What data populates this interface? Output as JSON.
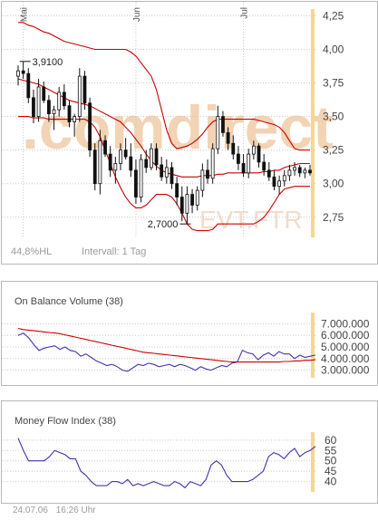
{
  "colors": {
    "band": "#cc0000",
    "line": "#4433aa",
    "candle": "#111111",
    "grid": "#c8c8c8",
    "marker": "#f6d88a",
    "watermark": "#f2d3b4",
    "muted": "#9a9a9a",
    "text": "#444444"
  },
  "price_panel": {
    "watermark": ".comdirect",
    "watermark2": "EVT.FTR",
    "stat_left": "44,8%HL",
    "stat_interval": "Intervall: 1 Tag",
    "hi_label": "3,9100",
    "lo_label": "2,7000",
    "month_labels": [
      "Mai",
      "Jun",
      "Jul"
    ],
    "y_ticks": [
      "4,25",
      "4,00",
      "3,75",
      "3,50",
      "3,25",
      "3,00",
      "2,75"
    ]
  },
  "obv_panel": {
    "title": "On Balance Volume (38)",
    "y_ticks": [
      "7.000.000",
      "6.000.000",
      "5.000.000",
      "4.000.000",
      "3.000.000"
    ]
  },
  "mfi_panel": {
    "title": "Money Flow Index (38)",
    "y_ticks": [
      "60",
      "55",
      "50",
      "45",
      "40"
    ]
  },
  "footer": {
    "date": "24.07.06",
    "time": "16:26 Uhr"
  },
  "chart_data": [
    {
      "type": "candlestick",
      "title": "",
      "ylim": [
        2.6,
        4.3
      ],
      "y_ticks": [
        2.75,
        3.0,
        3.25,
        3.5,
        3.75,
        4.0,
        4.25
      ],
      "grid": true,
      "n_days": 58,
      "month_starts": {
        "Mai": 1,
        "Jun": 23,
        "Jul": 44
      },
      "annotations": [
        {
          "label": "3,9100",
          "index": 1,
          "value": 3.91
        },
        {
          "label": "2,7000",
          "index": 33,
          "value": 2.7
        }
      ],
      "ohlc": [
        [
          3.8,
          3.88,
          3.73,
          3.84
        ],
        [
          3.84,
          3.91,
          3.78,
          3.82
        ],
        [
          3.82,
          3.86,
          3.6,
          3.64
        ],
        [
          3.64,
          3.7,
          3.45,
          3.5
        ],
        [
          3.5,
          3.78,
          3.46,
          3.72
        ],
        [
          3.72,
          3.76,
          3.6,
          3.62
        ],
        [
          3.62,
          3.66,
          3.46,
          3.52
        ],
        [
          3.52,
          3.58,
          3.4,
          3.55
        ],
        [
          3.55,
          3.72,
          3.5,
          3.68
        ],
        [
          3.68,
          3.74,
          3.55,
          3.58
        ],
        [
          3.58,
          3.62,
          3.42,
          3.46
        ],
        [
          3.46,
          3.52,
          3.35,
          3.5
        ],
        [
          3.5,
          3.86,
          3.46,
          3.8
        ],
        [
          3.8,
          3.84,
          3.55,
          3.6
        ],
        [
          3.6,
          3.64,
          3.2,
          3.25
        ],
        [
          3.25,
          3.3,
          2.95,
          3.0
        ],
        [
          3.0,
          3.4,
          2.92,
          3.32
        ],
        [
          3.32,
          3.36,
          3.2,
          3.22
        ],
        [
          3.22,
          3.28,
          3.05,
          3.1
        ],
        [
          3.1,
          3.2,
          3.0,
          3.15
        ],
        [
          3.15,
          3.3,
          3.1,
          3.25
        ],
        [
          3.25,
          3.34,
          3.18,
          3.2
        ],
        [
          3.2,
          3.3,
          3.05,
          3.1
        ],
        [
          3.1,
          3.18,
          2.85,
          2.9
        ],
        [
          2.9,
          3.22,
          2.86,
          3.18
        ],
        [
          3.18,
          3.25,
          3.08,
          3.12
        ],
        [
          3.12,
          3.3,
          3.1,
          3.26
        ],
        [
          3.26,
          3.3,
          3.1,
          3.14
        ],
        [
          3.14,
          3.2,
          3.02,
          3.05
        ],
        [
          3.05,
          3.18,
          3.0,
          3.12
        ],
        [
          3.12,
          3.16,
          2.96,
          3.0
        ],
        [
          3.0,
          3.05,
          2.84,
          2.9
        ],
        [
          2.9,
          2.98,
          2.72,
          2.78
        ],
        [
          2.78,
          2.98,
          2.7,
          2.92
        ],
        [
          2.92,
          2.96,
          2.78,
          2.84
        ],
        [
          2.84,
          2.98,
          2.8,
          2.95
        ],
        [
          2.95,
          3.15,
          2.9,
          3.1
        ],
        [
          3.1,
          3.18,
          3.0,
          3.04
        ],
        [
          3.04,
          3.3,
          3.0,
          3.26
        ],
        [
          3.26,
          3.58,
          3.22,
          3.5
        ],
        [
          3.5,
          3.54,
          3.35,
          3.38
        ],
        [
          3.38,
          3.42,
          3.25,
          3.3
        ],
        [
          3.3,
          3.36,
          3.18,
          3.22
        ],
        [
          3.22,
          3.28,
          3.1,
          3.15
        ],
        [
          3.15,
          3.22,
          3.05,
          3.08
        ],
        [
          3.08,
          3.26,
          3.04,
          3.22
        ],
        [
          3.22,
          3.32,
          3.18,
          3.28
        ],
        [
          3.28,
          3.3,
          3.12,
          3.16
        ],
        [
          3.16,
          3.22,
          3.06,
          3.1
        ],
        [
          3.1,
          3.16,
          3.02,
          3.05
        ],
        [
          3.05,
          3.1,
          2.95,
          2.98
        ],
        [
          2.98,
          3.06,
          2.92,
          3.02
        ],
        [
          3.02,
          3.1,
          2.98,
          3.06
        ],
        [
          3.06,
          3.14,
          3.02,
          3.1
        ],
        [
          3.1,
          3.16,
          3.06,
          3.12
        ],
        [
          3.12,
          3.14,
          3.05,
          3.08
        ],
        [
          3.08,
          3.12,
          3.04,
          3.1
        ],
        [
          3.1,
          3.14,
          3.06,
          3.08
        ]
      ],
      "bands": {
        "upper": [
          4.2,
          4.2,
          4.18,
          4.17,
          4.15,
          4.13,
          4.12,
          4.1,
          4.08,
          4.06,
          4.05,
          4.04,
          4.03,
          4.02,
          4.01,
          4.0,
          4.0,
          4.0,
          4.0,
          4.0,
          4.0,
          4.0,
          3.98,
          3.95,
          3.9,
          3.85,
          3.8,
          3.7,
          3.55,
          3.4,
          3.3,
          3.26,
          3.27,
          3.28,
          3.3,
          3.33,
          3.37,
          3.42,
          3.46,
          3.48,
          3.48,
          3.48,
          3.48,
          3.48,
          3.48,
          3.48,
          3.48,
          3.47,
          3.46,
          3.45,
          3.44,
          3.42,
          3.38,
          3.32,
          3.26,
          3.25,
          3.25,
          3.25
        ],
        "middle": [
          3.78,
          3.77,
          3.76,
          3.75,
          3.74,
          3.72,
          3.7,
          3.68,
          3.66,
          3.64,
          3.62,
          3.61,
          3.6,
          3.59,
          3.58,
          3.56,
          3.54,
          3.52,
          3.5,
          3.48,
          3.46,
          3.42,
          3.38,
          3.33,
          3.28,
          3.22,
          3.17,
          3.13,
          3.1,
          3.08,
          3.07,
          3.06,
          3.05,
          3.05,
          3.05,
          3.05,
          3.06,
          3.06,
          3.06,
          3.07,
          3.07,
          3.08,
          3.08,
          3.08,
          3.08,
          3.08,
          3.08,
          3.08,
          3.09,
          3.09,
          3.1,
          3.1,
          3.12,
          3.13,
          3.14,
          3.15,
          3.15,
          3.15
        ],
        "lower": [
          3.5,
          3.5,
          3.5,
          3.49,
          3.49,
          3.49,
          3.48,
          3.48,
          3.48,
          3.48,
          3.48,
          3.48,
          3.48,
          3.48,
          3.46,
          3.42,
          3.35,
          3.25,
          3.15,
          3.05,
          2.97,
          2.9,
          2.85,
          2.82,
          2.82,
          2.84,
          2.88,
          2.92,
          2.92,
          2.92,
          2.9,
          2.85,
          2.78,
          2.7,
          2.66,
          2.65,
          2.65,
          2.65,
          2.66,
          2.7,
          2.7,
          2.7,
          2.7,
          2.7,
          2.7,
          2.7,
          2.7,
          2.72,
          2.75,
          2.8,
          2.86,
          2.92,
          2.96,
          2.97,
          2.98,
          2.98,
          2.98,
          2.98
        ]
      }
    },
    {
      "type": "line",
      "title": "On Balance Volume (38)",
      "ylim": [
        2500000,
        7500000
      ],
      "y_ticks": [
        3000000,
        4000000,
        5000000,
        6000000,
        7000000
      ],
      "series": [
        {
          "values": [
            6000000,
            6200000,
            5800000,
            5200000,
            4700000,
            4900000,
            5000000,
            5100000,
            4800000,
            5000000,
            4700000,
            4600000,
            4200000,
            4400000,
            4100000,
            3800000,
            3600000,
            3400000,
            3500000,
            3300000,
            3000000,
            2900000,
            3200000,
            3500000,
            3400000,
            3600000,
            3500000,
            3300000,
            3400000,
            3500000,
            3300000,
            3500000,
            3400000,
            3200000,
            3000000,
            3300000,
            3100000,
            3000000,
            3200000,
            3400000,
            3300000,
            3600000,
            3700000,
            4700000,
            4500000,
            4400000,
            3900000,
            4300000,
            4500000,
            4200000,
            4600000,
            4400000,
            4400000,
            4000000,
            4300000,
            4100000,
            4200000,
            4300000
          ]
        },
        {
          "values": [
            6600000,
            6500000,
            6450000,
            6400000,
            6350000,
            6300000,
            6250000,
            6200000,
            6150000,
            6050000,
            5950000,
            5850000,
            5750000,
            5650000,
            5550000,
            5450000,
            5350000,
            5250000,
            5150000,
            5050000,
            4950000,
            4850000,
            4750000,
            4650000,
            4550000,
            4500000,
            4450000,
            4400000,
            4350000,
            4300000,
            4250000,
            4200000,
            4150000,
            4100000,
            4050000,
            4000000,
            3950000,
            3900000,
            3850000,
            3800000,
            3750000,
            3700000,
            3700000,
            3700000,
            3700000,
            3700000,
            3700000,
            3700000,
            3700000,
            3700000,
            3700000,
            3750000,
            3750000,
            3800000,
            3800000,
            3850000,
            3850000,
            3900000
          ]
        }
      ]
    },
    {
      "type": "line",
      "title": "Money Flow Index (38)",
      "ylim": [
        35,
        63
      ],
      "y_ticks": [
        40,
        45,
        50,
        55,
        60
      ],
      "series": [
        {
          "values": [
            61,
            55,
            50,
            50,
            50,
            50,
            52,
            55,
            54,
            53,
            51,
            51,
            45,
            43,
            40,
            38,
            38,
            38,
            40,
            40,
            39,
            41,
            38,
            39,
            38,
            39,
            40,
            39,
            38,
            38,
            40,
            39,
            37,
            40,
            39,
            38,
            41,
            48,
            50,
            48,
            43,
            40,
            40,
            40,
            40,
            41,
            43,
            45,
            52,
            54,
            53,
            51,
            54,
            56,
            52,
            54,
            55,
            57
          ]
        }
      ]
    }
  ]
}
